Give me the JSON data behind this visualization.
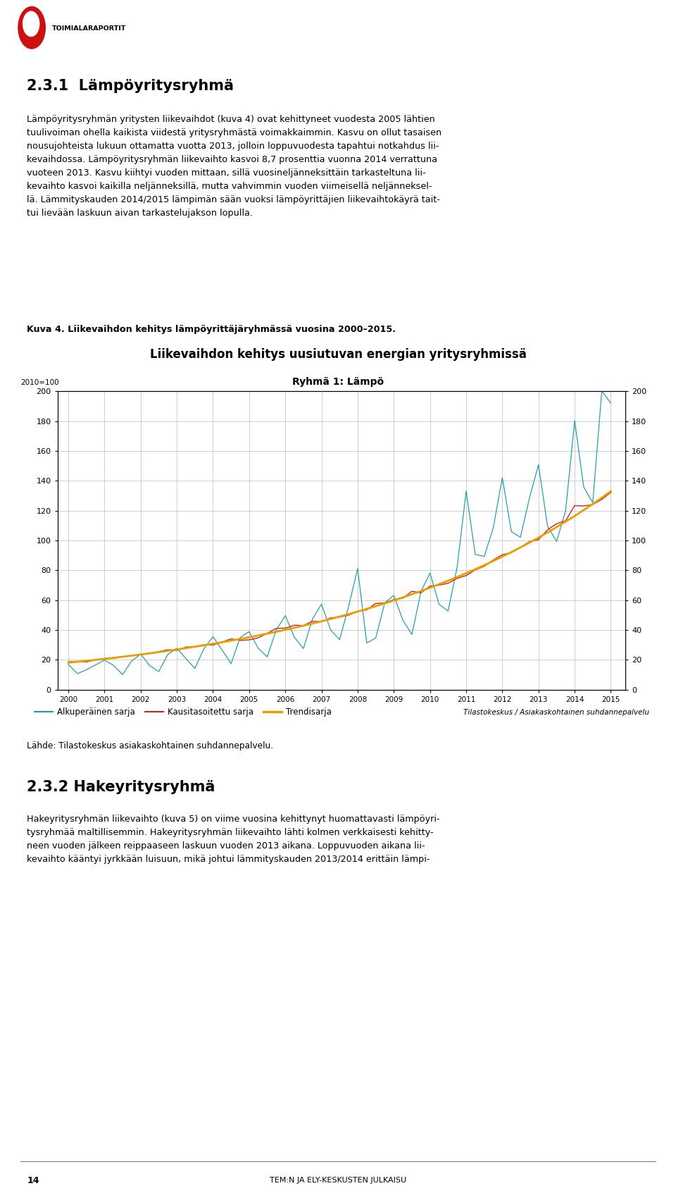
{
  "title_line1": "Liikevaihdon kehitys uusiutuvan energian yritysryhmissä",
  "title_line2": "Ryhmä 1: Lämpö",
  "y_label": "2010=100",
  "x_ticks": [
    "2000",
    "2001",
    "2002",
    "2003",
    "2004",
    "2005",
    "2006",
    "2007",
    "2008",
    "2009",
    "2010",
    "2011",
    "2012",
    "2013",
    "2014",
    "2015"
  ],
  "ylim": [
    0,
    200
  ],
  "yticks": [
    0,
    20,
    40,
    60,
    80,
    100,
    120,
    140,
    160,
    180,
    200
  ],
  "legend_original": "Alkuperäinen sarja",
  "legend_seasonal": "Kausitasoitettu sarja",
  "legend_trend": "Trendisarja",
  "source_text": "Tilastokeskus / Asiakaskohtainen suhdannepalvelu",
  "source_text2": "Lähde: Tilastokeskus asiakaskohtainen suhdannepalvelu.",
  "color_original": "#1A9BA8",
  "color_seasonal": "#CC2222",
  "color_trend": "#E8A000",
  "background_color": "#ffffff",
  "heading_231": "2.3.1  Lämpöyritysryhmä",
  "heading_232": "2.3.2 Hakeyritysryhmä",
  "kuva4_label": "Kuva 4. Liikevaihdon kehitys lämpöyrittäjäryhmässä vuosina 2000–2015.",
  "page_number": "14",
  "page_label": "TEM:N JA ELY-KESKUSTEN JULKAISU",
  "orig_multipliers": [
    0.9,
    0.6,
    0.5,
    0.85,
    0.95,
    0.65,
    0.52,
    0.88,
    1.0,
    0.68,
    0.55,
    0.92,
    1.05,
    0.72,
    0.58,
    0.96,
    1.1,
    0.75,
    0.6,
    1.0,
    1.15,
    0.8,
    0.62,
    1.05,
    1.2,
    0.82,
    0.64,
    1.08,
    1.25,
    0.85,
    0.66,
    1.12,
    1.55,
    0.58,
    0.62,
    1.0,
    1.05,
    0.72,
    0.58,
    0.96,
    1.15,
    0.82,
    0.72,
    1.08,
    1.7,
    1.1,
    1.05,
    1.25,
    1.6,
    1.15,
    1.05,
    1.3,
    1.5,
    1.05,
    0.92,
    1.05,
    1.55,
    1.1,
    1.0,
    1.85,
    1.45
  ]
}
